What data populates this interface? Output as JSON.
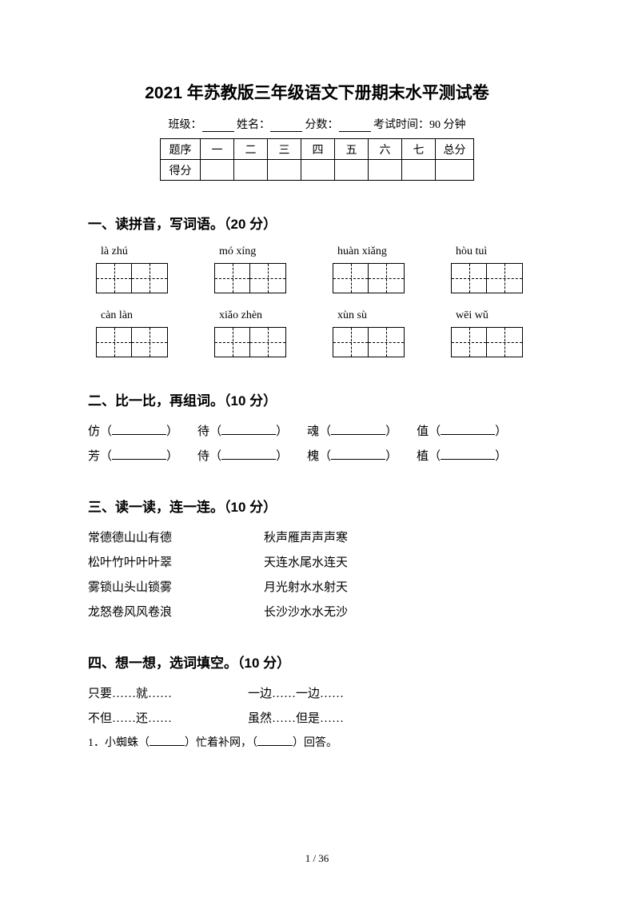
{
  "title": "2021 年苏教版三年级语文下册期末水平测试卷",
  "info": {
    "class_label": "班级：",
    "name_label": "姓名：",
    "score_label": "分数：",
    "time_label": "考试时间：90 分钟"
  },
  "score_table": {
    "row1_label": "题序",
    "cols": [
      "一",
      "二",
      "三",
      "四",
      "五",
      "六",
      "七"
    ],
    "total_label": "总分",
    "row2_label": "得分"
  },
  "section1": {
    "heading": "一、读拼音，写词语。（20 分）",
    "pinyin_row1": [
      "là   zhú",
      "mó   xíng",
      "huàn xiǎng",
      "hòu   tuì"
    ],
    "pinyin_row2": [
      "càn   làn",
      "xiǎo   zhèn",
      "xùn   sù",
      "wēi   wǔ"
    ]
  },
  "section2": {
    "heading": "二、比一比，再组词。（10 分）",
    "row1": [
      "仿",
      "待",
      "魂",
      "值"
    ],
    "row2": [
      "芳",
      "侍",
      "槐",
      "植"
    ]
  },
  "section3": {
    "heading": "三、读一读，连一连。（10 分）",
    "pairs": [
      {
        "left": "常德德山山有德",
        "right": "秋声雁声声声寒"
      },
      {
        "left": "松叶竹叶叶叶翠",
        "right": "天连水尾水连天"
      },
      {
        "left": "雾锁山头山锁雾",
        "right": "月光射水水射天"
      },
      {
        "left": "龙怒卷风风卷浪",
        "right": "长沙沙水水无沙"
      }
    ]
  },
  "section4": {
    "heading": "四、想一想，选词填空。（10 分）",
    "options_row1": [
      "只要……就……",
      "一边……一边……"
    ],
    "options_row2": [
      "不但……还……",
      "虽然……但是……"
    ],
    "q1_pre": "1．小蜘蛛（",
    "q1_mid": "）忙着补网，（",
    "q1_post": "）回答。"
  },
  "page_number": "1 / 36"
}
